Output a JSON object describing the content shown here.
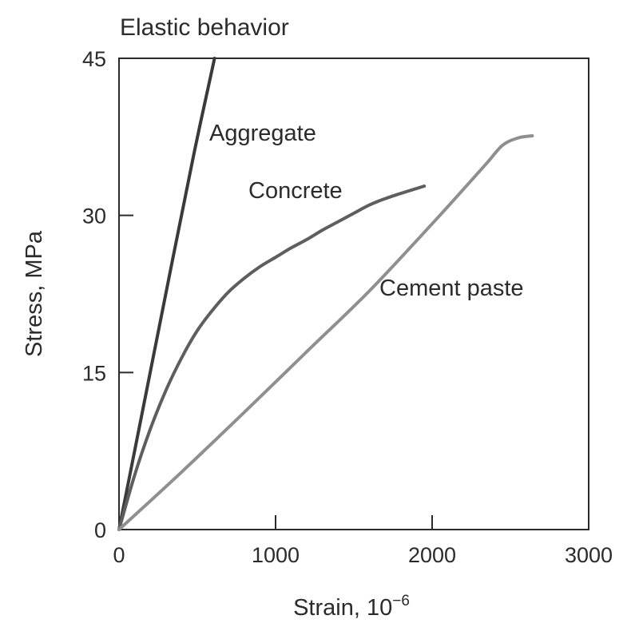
{
  "chart_data": {
    "type": "line",
    "title": "Elastic behavior",
    "xlabel": {
      "base": "Strain, 10",
      "sup": "−6"
    },
    "ylabel": "Stress, MPa",
    "xlim": [
      0,
      3000
    ],
    "ylim": [
      0,
      45
    ],
    "xticks": [
      0,
      1000,
      2000,
      3000
    ],
    "yticks": [
      0,
      15,
      30,
      45
    ],
    "xtick_labels": [
      "0",
      "1000",
      "2000",
      "3000"
    ],
    "ytick_labels": [
      "0",
      "15",
      "30",
      "45"
    ],
    "grid": false,
    "legend": "none",
    "series": [
      {
        "name": "Aggregate",
        "color": "#3a3a3a",
        "x": [
          0,
          170,
          340,
          480,
          610
        ],
        "y": [
          0,
          12.8,
          25.6,
          36.0,
          45.0
        ]
      },
      {
        "name": "Concrete",
        "color": "#5e5e5e",
        "x": [
          0,
          100,
          200,
          300,
          400,
          500,
          600,
          700,
          800,
          900,
          1000,
          1100,
          1200,
          1300,
          1400,
          1500,
          1600,
          1700,
          1800,
          1950
        ],
        "y": [
          0,
          5.2,
          9.6,
          13.3,
          16.4,
          19.0,
          21.0,
          22.7,
          24.0,
          25.1,
          26.0,
          26.9,
          27.7,
          28.6,
          29.4,
          30.2,
          31.0,
          31.6,
          32.1,
          32.8
        ]
      },
      {
        "name": "Cement paste",
        "color": "#8f8f8f",
        "x": [
          0,
          400,
          800,
          1200,
          1600,
          2000,
          2200,
          2350,
          2450,
          2550,
          2640
        ],
        "y": [
          0,
          5.5,
          11.2,
          17.0,
          22.8,
          29.2,
          32.5,
          35.0,
          36.7,
          37.4,
          37.6
        ]
      }
    ]
  }
}
